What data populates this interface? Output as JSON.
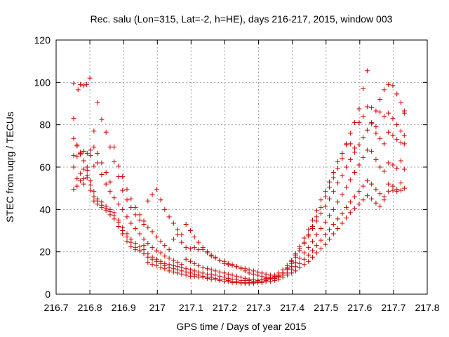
{
  "chart_data": {
    "type": "scatter",
    "title": "Rec. salu (Lon=315, Lat=-2, h=HE), days 216-217, 2015, window 003",
    "xlabel": "GPS time / Days of year 2015",
    "ylabel": "STEC from uqrg / TECUs",
    "xlim": [
      216.7,
      217.8
    ],
    "ylim": [
      0,
      120
    ],
    "xticks": [
      216.7,
      216.8,
      216.9,
      217,
      217.1,
      217.2,
      217.3,
      217.4,
      217.5,
      217.6,
      217.7,
      217.8
    ],
    "xtick_labels": [
      "216.7",
      "216.8",
      "216.9",
      "217",
      "217.1",
      "217.2",
      "217.3",
      "217.4",
      "217.5",
      "217.6",
      "217.7",
      "217.8"
    ],
    "yticks": [
      0,
      20,
      40,
      60,
      80,
      100,
      120
    ],
    "ytick_labels": [
      "0",
      "20",
      "40",
      "60",
      "80",
      "100",
      "120"
    ],
    "grid": true,
    "marker": "+",
    "color": "#cc0000",
    "series": [
      {
        "x": [
          216.752,
          216.765,
          216.772,
          216.781,
          216.79,
          216.8,
          216.812,
          216.823,
          216.835,
          216.848,
          216.86,
          216.872,
          216.885,
          216.897,
          216.91,
          216.922,
          216.935,
          216.948,
          216.96,
          216.972,
          216.985,
          216.998,
          217.01,
          217.022,
          217.035,
          217.048,
          217.06,
          217.072,
          217.085,
          217.098,
          217.11,
          217.122,
          217.135,
          217.148,
          217.16,
          217.172,
          217.185,
          217.198,
          217.21,
          217.222,
          217.235,
          217.248,
          217.26,
          217.272,
          217.285,
          217.298,
          217.31,
          217.322,
          217.335,
          217.348,
          217.36,
          217.372,
          217.385,
          217.398,
          217.41,
          217.422,
          217.435,
          217.448,
          217.46,
          217.472,
          217.485,
          217.498,
          217.51,
          217.522,
          217.535,
          217.548,
          217.56,
          217.572,
          217.585,
          217.598,
          217.61,
          217.622,
          217.635,
          217.648,
          217.66,
          217.672,
          217.685,
          217.698,
          217.71,
          217.722,
          217.732
        ],
        "y": [
          99.5,
          96.5,
          99.0,
          98.5,
          99.0,
          102.0,
          77.0,
          90.5,
          82.5,
          76.5,
          69.5,
          62.5,
          55.5,
          49.0,
          44.5,
          41.0,
          37.5,
          35.0,
          33.0,
          44.0,
          47.0,
          49.5,
          44.5,
          40.0,
          36.5,
          33.5,
          30.5,
          28.0,
          33.0,
          30.0,
          27.0,
          24.5,
          22.0,
          20.0,
          18.0,
          17.5,
          16.0,
          14.5,
          14.0,
          13.5,
          13.0,
          12.5,
          12.0,
          11.5,
          11.0,
          10.5,
          10.0,
          9.5,
          9.0,
          8.5,
          9.0,
          10.0,
          12.5,
          15.5,
          19.0,
          22.5,
          26.5,
          30.5,
          35.0,
          39.5,
          44.5,
          48.5,
          53.0,
          57.5,
          62.5,
          66.5,
          71.0,
          76.0,
          81.0,
          87.5,
          97.0,
          105.5,
          88.0,
          86.5,
          92.0,
          96.5,
          99.0,
          98.5,
          94.5,
          90.5,
          86.5
        ]
      },
      {
        "x": [
          216.752,
          216.762,
          216.772,
          216.782,
          216.792,
          216.802,
          216.812,
          216.822,
          216.835,
          216.848,
          216.86,
          216.872,
          216.885,
          216.897,
          216.91,
          216.922,
          216.935,
          216.948,
          216.96,
          216.972,
          216.985,
          216.998,
          217.01,
          217.022,
          217.035,
          217.048,
          217.06,
          217.072,
          217.085,
          217.098,
          217.11,
          217.122,
          217.135,
          217.148,
          217.16,
          217.172,
          217.185,
          217.198,
          217.21,
          217.222,
          217.235,
          217.248,
          217.26,
          217.272,
          217.285,
          217.298,
          217.31,
          217.322,
          217.335,
          217.348,
          217.36,
          217.372,
          217.385,
          217.398,
          217.41,
          217.422,
          217.435,
          217.448,
          217.46,
          217.472,
          217.485,
          217.498,
          217.51,
          217.522,
          217.535,
          217.548,
          217.56,
          217.572,
          217.585,
          217.598,
          217.61,
          217.622,
          217.635,
          217.648,
          217.66,
          217.672,
          217.685,
          217.698,
          217.71,
          217.722,
          217.732
        ],
        "y": [
          83.0,
          70.5,
          67.0,
          67.5,
          66.5,
          65.5,
          69.5,
          66.5,
          62.0,
          57.5,
          53.0,
          69.5,
          60.5,
          55.5,
          49.5,
          45.0,
          41.0,
          37.5,
          34.5,
          31.5,
          29.5,
          27.0,
          25.0,
          23.0,
          21.0,
          26.0,
          28.0,
          24.5,
          22.0,
          21.5,
          22.0,
          21.0,
          21.0,
          19.5,
          18.5,
          17.0,
          16.0,
          15.5,
          14.5,
          14.0,
          13.0,
          12.0,
          11.0,
          10.0,
          9.5,
          9.0,
          8.5,
          8.0,
          8.0,
          7.5,
          8.5,
          10.0,
          12.0,
          14.5,
          17.5,
          20.5,
          24.0,
          28.0,
          32.0,
          36.5,
          41.0,
          46.0,
          50.5,
          55.0,
          59.5,
          64.0,
          70.5,
          71.0,
          69.0,
          81.0,
          84.0,
          88.5,
          81.0,
          79.0,
          86.0,
          84.0,
          85.5,
          83.0,
          80.0,
          77.0,
          85.5
        ]
      },
      {
        "x": [
          216.752,
          216.762,
          216.772,
          216.782,
          216.792,
          216.802,
          216.812,
          216.822,
          216.835,
          216.848,
          216.86,
          216.872,
          216.885,
          216.897,
          216.91,
          216.922,
          216.935,
          216.948,
          216.96,
          216.972,
          216.985,
          216.998,
          217.01,
          217.022,
          217.035,
          217.048,
          217.06,
          217.072,
          217.085,
          217.098,
          217.11,
          217.122,
          217.135,
          217.148,
          217.16,
          217.172,
          217.185,
          217.198,
          217.21,
          217.222,
          217.235,
          217.248,
          217.26,
          217.272,
          217.285,
          217.298,
          217.31,
          217.322,
          217.335,
          217.348,
          217.36,
          217.372,
          217.385,
          217.398,
          217.41,
          217.422,
          217.435,
          217.448,
          217.46,
          217.472,
          217.485,
          217.498,
          217.51,
          217.522,
          217.535,
          217.548,
          217.56,
          217.572,
          217.585,
          217.598,
          217.61,
          217.622,
          217.635,
          217.648,
          217.66,
          217.672,
          217.685,
          217.698,
          217.71,
          217.722,
          217.732
        ],
        "y": [
          73.5,
          70.0,
          66.0,
          63.0,
          60.0,
          68.0,
          60.5,
          62.0,
          56.5,
          52.0,
          48.5,
          45.5,
          42.5,
          40.0,
          36.5,
          33.5,
          31.0,
          28.5,
          26.0,
          24.0,
          22.0,
          20.5,
          19.5,
          18.0,
          17.0,
          16.0,
          15.0,
          14.0,
          16.5,
          15.5,
          14.5,
          13.5,
          12.5,
          12.0,
          11.5,
          11.0,
          10.5,
          10.0,
          9.5,
          9.0,
          8.5,
          8.0,
          7.5,
          7.0,
          7.0,
          6.5,
          7.0,
          7.5,
          8.0,
          9.0,
          10.0,
          11.5,
          13.5,
          16.0,
          18.5,
          21.5,
          24.5,
          27.5,
          31.0,
          34.5,
          38.0,
          41.5,
          45.0,
          48.5,
          52.5,
          56.0,
          60.0,
          63.5,
          67.0,
          70.5,
          74.0,
          77.5,
          80.5,
          76.0,
          73.5,
          71.0,
          76.5,
          75.0,
          73.0,
          71.5,
          75.0
        ]
      },
      {
        "x": [
          216.752,
          216.762,
          216.772,
          216.782,
          216.792,
          216.802,
          216.812,
          216.822,
          216.835,
          216.848,
          216.86,
          216.872,
          216.885,
          216.897,
          216.91,
          216.922,
          216.935,
          216.948,
          216.96,
          216.972,
          216.985,
          216.998,
          217.01,
          217.022,
          217.035,
          217.048,
          217.06,
          217.072,
          217.085,
          217.098,
          217.11,
          217.122,
          217.135,
          217.148,
          217.16,
          217.172,
          217.185,
          217.198,
          217.21,
          217.222,
          217.235,
          217.248,
          217.26,
          217.272,
          217.285,
          217.298,
          217.31,
          217.322,
          217.335,
          217.348,
          217.36,
          217.372,
          217.385,
          217.398,
          217.41,
          217.422,
          217.435,
          217.448,
          217.46,
          217.472,
          217.485,
          217.498,
          217.51,
          217.522,
          217.535,
          217.548,
          217.56,
          217.572,
          217.585,
          217.598,
          217.61,
          217.622,
          217.635,
          217.648,
          217.66,
          217.672,
          217.685,
          217.698,
          217.71,
          217.722,
          217.732
        ],
        "y": [
          65.5,
          65.0,
          66.5,
          59.0,
          58.5,
          53.5,
          48.5,
          45.0,
          43.5,
          41.5,
          40.0,
          38.5,
          35.0,
          31.5,
          28.5,
          26.0,
          24.0,
          22.5,
          21.0,
          19.0,
          17.5,
          16.5,
          15.5,
          14.5,
          14.0,
          13.5,
          13.0,
          12.5,
          12.0,
          11.5,
          11.0,
          10.5,
          10.0,
          9.5,
          9.5,
          9.0,
          8.5,
          8.0,
          7.5,
          7.0,
          7.0,
          6.5,
          6.5,
          6.5,
          6.0,
          6.5,
          7.0,
          7.0,
          7.5,
          8.0,
          9.0,
          10.0,
          11.5,
          13.0,
          15.0,
          17.0,
          19.5,
          22.0,
          25.0,
          28.0,
          31.0,
          34.0,
          37.0,
          40.0,
          43.5,
          47.0,
          50.5,
          54.0,
          57.5,
          61.0,
          64.5,
          68.0,
          67.5,
          63.5,
          60.0,
          58.0,
          62.0,
          61.0,
          59.5,
          63.0,
          71.0
        ]
      },
      {
        "x": [
          216.752,
          216.762,
          216.772,
          216.782,
          216.792,
          216.802,
          216.812,
          216.822,
          216.835,
          216.848,
          216.86,
          216.872,
          216.885,
          216.897,
          216.91,
          216.922,
          216.935,
          216.948,
          216.96,
          216.972,
          216.985,
          216.998,
          217.01,
          217.022,
          217.035,
          217.048,
          217.06,
          217.072,
          217.085,
          217.098,
          217.11,
          217.122,
          217.135,
          217.148,
          217.16,
          217.172,
          217.185,
          217.198,
          217.21,
          217.222,
          217.235,
          217.248,
          217.26,
          217.272,
          217.285,
          217.298,
          217.31,
          217.322,
          217.335,
          217.348,
          217.36,
          217.372,
          217.385,
          217.398,
          217.41,
          217.422,
          217.435,
          217.448,
          217.46,
          217.472,
          217.485,
          217.498,
          217.51,
          217.522,
          217.535,
          217.548,
          217.56,
          217.572,
          217.585,
          217.598,
          217.61,
          217.622,
          217.635,
          217.648,
          217.66,
          217.672,
          217.685,
          217.698,
          217.71,
          217.722,
          217.732
        ],
        "y": [
          60.0,
          54.5,
          57.0,
          52.0,
          55.0,
          49.0,
          46.0,
          44.0,
          42.0,
          40.5,
          39.0,
          37.0,
          34.0,
          30.0,
          27.0,
          24.5,
          22.0,
          20.5,
          19.0,
          17.5,
          16.5,
          15.5,
          14.5,
          13.5,
          12.5,
          12.0,
          11.5,
          11.0,
          10.5,
          10.0,
          9.5,
          9.0,
          8.5,
          8.0,
          8.0,
          7.5,
          7.0,
          7.0,
          6.5,
          6.0,
          6.0,
          5.5,
          5.5,
          5.5,
          5.5,
          6.0,
          6.0,
          6.5,
          7.0,
          7.5,
          8.0,
          9.0,
          10.0,
          11.5,
          13.0,
          14.5,
          16.5,
          18.5,
          20.5,
          23.0,
          25.5,
          28.0,
          30.5,
          33.0,
          35.5,
          38.0,
          41.0,
          43.5,
          46.0,
          48.5,
          51.0,
          53.5,
          52.0,
          49.5,
          47.5,
          46.0,
          52.0,
          51.0,
          49.5,
          52.5,
          59.0
        ]
      },
      {
        "x": [
          216.752,
          216.762,
          216.772,
          216.782,
          216.792,
          216.802,
          216.812,
          216.822,
          216.835,
          216.848,
          216.86,
          216.872,
          216.885,
          216.897,
          216.91,
          216.922,
          216.935,
          216.948,
          216.96,
          216.972,
          216.985,
          216.998,
          217.01,
          217.022,
          217.035,
          217.048,
          217.06,
          217.072,
          217.085,
          217.098,
          217.11,
          217.122,
          217.135,
          217.148,
          217.16,
          217.172,
          217.185,
          217.198,
          217.21,
          217.222,
          217.235,
          217.248,
          217.26,
          217.272,
          217.285,
          217.298,
          217.31,
          217.322,
          217.335,
          217.348,
          217.36,
          217.372,
          217.385,
          217.398,
          217.41,
          217.422,
          217.435,
          217.448,
          217.46,
          217.472,
          217.485,
          217.498,
          217.51,
          217.522,
          217.535,
          217.548,
          217.56,
          217.572,
          217.585,
          217.598,
          217.61,
          217.622,
          217.635,
          217.648,
          217.66,
          217.672,
          217.685,
          217.698,
          217.71,
          217.722,
          217.732
        ],
        "y": [
          49.5,
          51.0,
          53.5,
          54.5,
          56.0,
          51.5,
          44.0,
          42.5,
          41.0,
          39.5,
          37.5,
          35.5,
          32.0,
          28.5,
          25.0,
          22.5,
          21.0,
          20.5,
          23.0,
          15.0,
          14.0,
          13.5,
          12.5,
          12.0,
          11.0,
          10.5,
          10.0,
          9.5,
          9.0,
          8.5,
          8.5,
          8.0,
          8.0,
          7.5,
          7.0,
          7.0,
          6.5,
          6.0,
          6.0,
          5.5,
          5.5,
          5.0,
          5.0,
          5.0,
          5.0,
          5.5,
          5.5,
          6.0,
          6.0,
          6.5,
          7.0,
          8.0,
          9.0,
          10.0,
          11.0,
          12.5,
          14.0,
          15.5,
          17.5,
          19.5,
          21.5,
          23.5,
          26.0,
          28.5,
          31.0,
          33.5,
          36.0,
          38.5,
          40.5,
          42.5,
          44.5,
          46.5,
          45.0,
          43.0,
          41.5,
          44.5,
          48.5,
          49.0,
          48.5,
          49.0,
          50.0
        ]
      }
    ]
  }
}
